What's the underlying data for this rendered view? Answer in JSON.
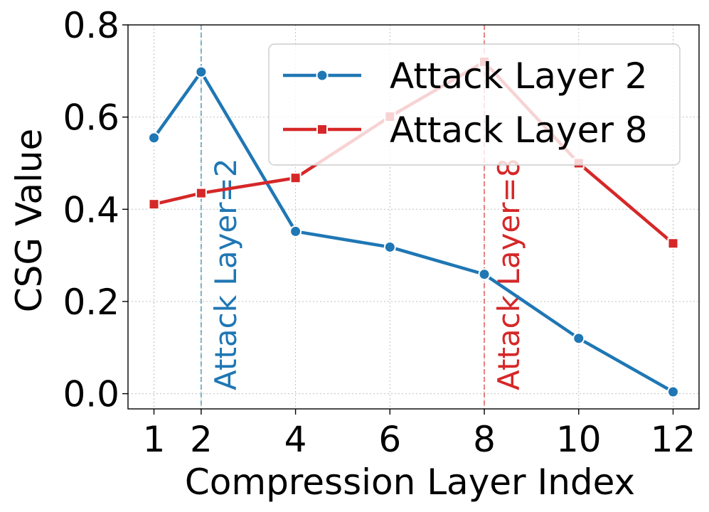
{
  "chart_data": {
    "type": "line",
    "xlabel": "Compression Layer Index",
    "ylabel": "CSG Value",
    "xlim": [
      0.45,
      12.55
    ],
    "ylim": [
      -0.033,
      0.8
    ],
    "xticks": [
      1,
      2,
      4,
      6,
      8,
      10,
      12
    ],
    "yticks": [
      0.0,
      0.2,
      0.4,
      0.6,
      0.8
    ],
    "ytick_labels": [
      "0.0",
      "0.2",
      "0.4",
      "0.6",
      "0.8"
    ],
    "grid": true,
    "legend_position": "top-right",
    "x": [
      1,
      2,
      4,
      6,
      8,
      10,
      12
    ],
    "series": [
      {
        "name": "Attack Layer 2",
        "marker": "circle",
        "color": "#1f77b4",
        "values": [
          0.555,
          0.698,
          0.352,
          0.318,
          0.259,
          0.12,
          0.004
        ]
      },
      {
        "name": "Attack Layer 8",
        "marker": "square",
        "color": "#d62728",
        "values": [
          0.411,
          0.435,
          0.468,
          0.601,
          0.72,
          0.5,
          0.326
        ]
      }
    ],
    "reference_lines": [
      {
        "x": 2,
        "label": "Attack Layer=2",
        "color": "#1f77b4"
      },
      {
        "x": 8,
        "label": "Attack Layer=8",
        "color": "#d62728"
      }
    ]
  }
}
